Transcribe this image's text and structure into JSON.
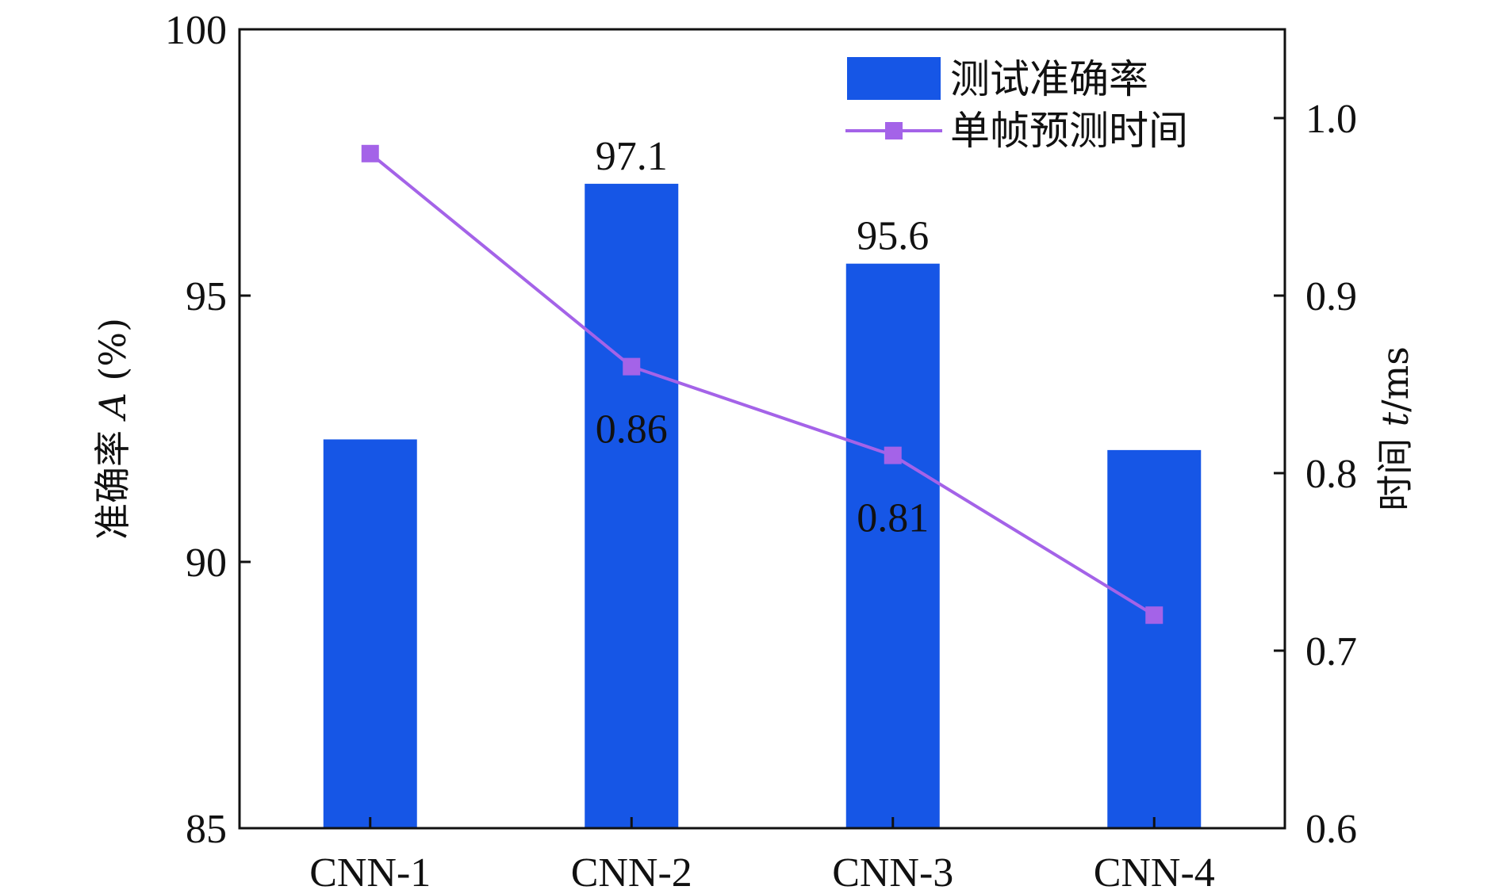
{
  "chart_data": {
    "type": "bar",
    "categories": [
      "CNN-1",
      "CNN-2",
      "CNN-3",
      "CNN-4"
    ],
    "series": [
      {
        "name": "测试准确率",
        "type": "bar",
        "axis": "left",
        "values": [
          92.3,
          97.1,
          95.6,
          92.1
        ],
        "labels": [
          "",
          "97.1",
          "95.6",
          ""
        ],
        "color": "#1656e6"
      },
      {
        "name": "单帧预测时间",
        "type": "line",
        "axis": "right",
        "values": [
          0.98,
          0.86,
          0.81,
          0.72
        ],
        "labels": [
          "",
          "0.86",
          "0.81",
          ""
        ],
        "color": "#a463e8"
      }
    ],
    "left_axis": {
      "label_prefix": "准确率 ",
      "label_var": "A",
      "label_suffix": " (%)",
      "ylim": [
        85,
        100
      ],
      "ticks": [
        "85",
        "90",
        "95",
        "100"
      ]
    },
    "right_axis": {
      "label_prefix": "时间 ",
      "label_var": "t",
      "label_suffix": "/ms",
      "ylim": [
        0.6,
        1.05
      ],
      "ticks": [
        "0.6",
        "0.7",
        "0.8",
        "0.9",
        "1.0"
      ]
    },
    "legend_position": "top-right",
    "grid": false
  }
}
